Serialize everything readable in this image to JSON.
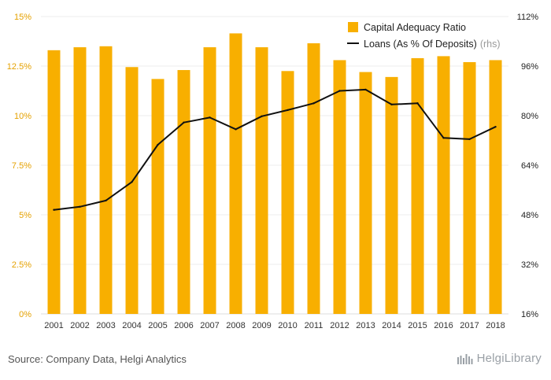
{
  "colors": {
    "bar": "#F8AF00",
    "line": "#111111",
    "grid": "#eeeeee",
    "left_axis_text": "#E5A100",
    "right_axis_text": "#222222"
  },
  "chart_data": {
    "type": "bar",
    "categories": [
      "2001",
      "2002",
      "2003",
      "2004",
      "2005",
      "2006",
      "2007",
      "2008",
      "2009",
      "2010",
      "2011",
      "2012",
      "2013",
      "2014",
      "2015",
      "2016",
      "2017",
      "2018"
    ],
    "series": [
      {
        "name": "Capital Adequacy Ratio",
        "type": "bar",
        "axis": "left",
        "values": [
          13.3,
          13.45,
          13.5,
          12.45,
          11.85,
          12.3,
          13.45,
          14.15,
          13.45,
          12.25,
          13.65,
          12.8,
          12.2,
          11.95,
          12.9,
          13.0,
          12.7,
          12.8
        ]
      },
      {
        "name": "Loans (As % Of Deposits)",
        "suffix": "(rhs)",
        "type": "line",
        "axis": "right",
        "values": [
          49.6,
          50.6,
          52.6,
          58.6,
          70.6,
          77.8,
          79.4,
          75.6,
          79.8,
          81.8,
          84.0,
          88.0,
          88.4,
          83.6,
          84.0,
          72.8,
          72.4,
          76.4
        ]
      }
    ],
    "y_left": {
      "min": 0,
      "max": 15,
      "ticks": [
        "0%",
        "2.5%",
        "5%",
        "7.5%",
        "10%",
        "12.5%",
        "15%"
      ]
    },
    "y_right": {
      "min": 16,
      "max": 112,
      "ticks": [
        "16%",
        "32%",
        "48%",
        "64%",
        "80%",
        "96%",
        "112%"
      ]
    },
    "grid": true,
    "legend_position": "top-right"
  },
  "footer": {
    "source": "Source: Company Data, Helgi Analytics",
    "logo_text": "HelgiLibrary"
  }
}
